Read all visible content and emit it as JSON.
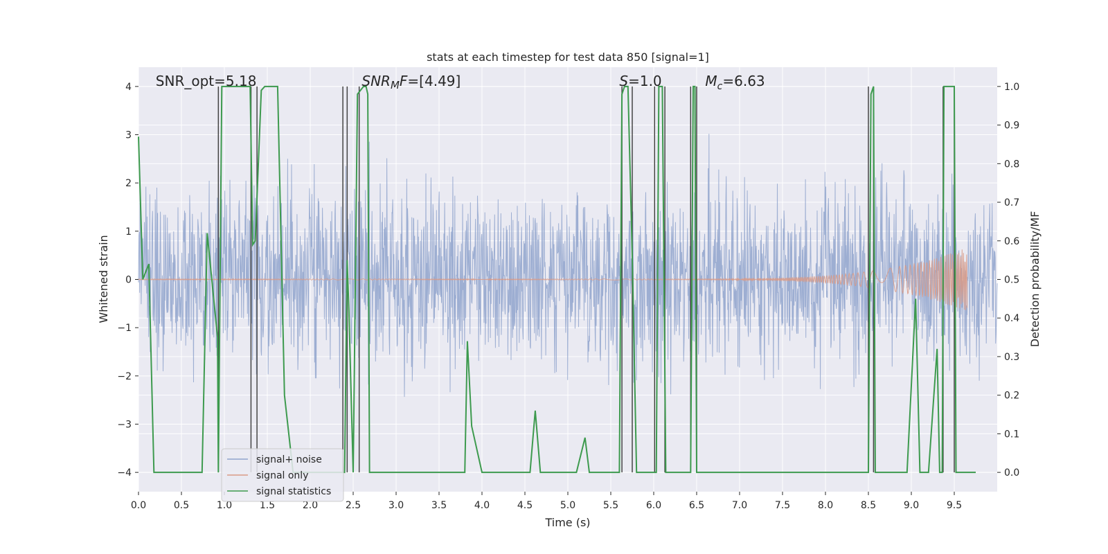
{
  "chart_data": {
    "type": "line",
    "title": "stats at each timestep for test data 850 [signal=1]",
    "xlabel": "Time (s)",
    "ylabel_left": "Whitened strain",
    "ylabel_right": "Detection probability/MF",
    "xlim": [
      0.0,
      10.0
    ],
    "ylim_left": [
      -4.4,
      4.4
    ],
    "ylim_right": [
      -0.05,
      1.05
    ],
    "x_ticks": [
      0.0,
      0.5,
      1.0,
      1.5,
      2.0,
      2.5,
      3.0,
      3.5,
      4.0,
      4.5,
      5.0,
      5.5,
      6.0,
      6.5,
      7.0,
      7.5,
      8.0,
      8.5,
      9.0,
      9.5
    ],
    "x_tick_labels": [
      "0.0",
      "0.5",
      "1.0",
      "1.5",
      "2.0",
      "2.5",
      "3.0",
      "3.5",
      "4.0",
      "4.5",
      "5.0",
      "5.5",
      "6.0",
      "6.5",
      "7.0",
      "7.5",
      "8.0",
      "8.5",
      "9.0",
      "9.5"
    ],
    "y_left_ticks": [
      -4,
      -3,
      -2,
      -1,
      0,
      1,
      2,
      3,
      4
    ],
    "y_left_tick_labels": [
      "−4",
      "−3",
      "−2",
      "−1",
      "0",
      "1",
      "2",
      "3",
      "4"
    ],
    "y_right_ticks": [
      0.0,
      0.1,
      0.2,
      0.3,
      0.4,
      0.5,
      0.6,
      0.7,
      0.8,
      0.9,
      1.0
    ],
    "y_right_tick_labels": [
      "0.0",
      "0.1",
      "0.2",
      "0.3",
      "0.4",
      "0.5",
      "0.6",
      "0.7",
      "0.8",
      "0.9",
      "1.0"
    ],
    "grid": true,
    "legend_placement": "lower-left",
    "annotations": [
      {
        "text": "SNR_opt=5.18",
        "x": 0.2
      },
      {
        "text": "SNR_MF=[4.49]",
        "x": 2.6,
        "math": "snr"
      },
      {
        "text": "S=1.0",
        "x": 5.6,
        "math": "s"
      },
      {
        "text": "M_c=6.63",
        "x": 6.6,
        "math": "mc"
      }
    ],
    "series": [
      {
        "name": "signal+ noise",
        "color": "#8fa3cc",
        "axis": "left",
        "style": "noise",
        "approx_amplitude_sd": 0.9,
        "approx_max_abs": 3.9
      },
      {
        "name": "signal only",
        "color": "#d99a86",
        "axis": "left",
        "style": "chirp",
        "start_x": 5.8,
        "end_x": 9.65,
        "peak_amplitude": 0.65
      },
      {
        "name": "signal statistics",
        "color": "#3d9a4e",
        "axis": "right",
        "x": [
          0.0,
          0.05,
          0.12,
          0.18,
          0.74,
          0.8,
          0.92,
          0.93,
          0.97,
          1.0,
          1.3,
          1.33,
          1.36,
          1.43,
          1.47,
          1.62,
          1.7,
          1.8,
          1.95,
          2.4,
          2.43,
          2.45,
          2.5,
          2.55,
          2.62,
          2.65,
          2.67,
          2.69,
          2.7,
          2.72,
          3.8,
          3.83,
          3.88,
          4.0,
          4.56,
          4.62,
          4.68,
          5.1,
          5.2,
          5.25,
          5.6,
          5.63,
          5.66,
          5.7,
          5.75,
          5.8,
          5.88,
          5.95,
          6.03,
          6.06,
          6.1,
          6.14,
          6.18,
          6.43,
          6.46,
          6.48,
          6.5,
          6.52,
          8.5,
          8.53,
          8.56,
          8.58,
          8.6,
          8.95,
          9.05,
          9.1,
          9.2,
          9.3,
          9.33,
          9.36,
          9.38,
          9.45,
          9.5,
          9.52,
          9.56,
          9.6,
          9.7,
          9.75
        ],
        "values": [
          0.87,
          0.5,
          0.54,
          0.0,
          0.0,
          0.62,
          0.35,
          0.0,
          1.0,
          1.0,
          1.0,
          0.59,
          0.6,
          0.99,
          1.0,
          1.0,
          0.2,
          0.0,
          0.0,
          0.0,
          0.55,
          0.42,
          0.0,
          0.98,
          1.0,
          1.0,
          0.98,
          0.0,
          0.0,
          0.0,
          0.0,
          0.34,
          0.12,
          0.0,
          0.0,
          0.16,
          0.0,
          0.0,
          0.09,
          0.0,
          0.0,
          0.98,
          1.0,
          1.0,
          0.56,
          0.0,
          0.0,
          0.0,
          0.0,
          1.0,
          1.0,
          0.0,
          0.0,
          0.0,
          1.0,
          1.0,
          0.0,
          0.0,
          0.0,
          0.98,
          1.0,
          0.0,
          0.0,
          0.0,
          0.45,
          0.0,
          0.0,
          0.32,
          0.0,
          0.0,
          1.0,
          1.0,
          1.0,
          0.0,
          0.0,
          0.0,
          0.0,
          0.0
        ]
      }
    ],
    "vertical_lines_x": [
      0.93,
      1.31,
      1.38,
      2.38,
      2.43,
      2.57,
      5.63,
      5.75,
      6.01,
      6.13,
      6.43,
      6.5,
      8.5,
      8.56,
      9.37,
      9.5
    ],
    "vertical_lines_range_right": [
      0.0,
      1.0
    ],
    "vertical_lines_color": "#444444"
  }
}
